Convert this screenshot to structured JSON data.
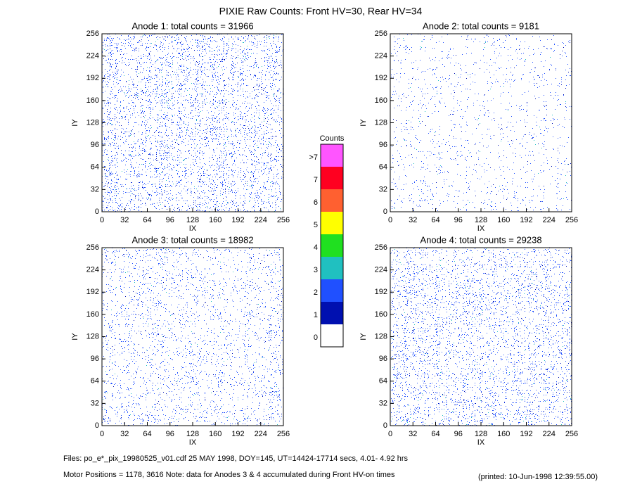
{
  "title": "PIXIE Raw Counts:  Front HV=30, Rear HV=34",
  "chart_data": [
    {
      "type": "heatmap",
      "title": "Anode 1: total counts = 31966",
      "x_label": "IX",
      "y_label": "IY",
      "xlim": [
        0,
        256
      ],
      "ylim": [
        0,
        256
      ],
      "xticks": [
        0,
        32,
        64,
        96,
        128,
        160,
        192,
        224,
        256
      ],
      "yticks": [
        0,
        32,
        64,
        96,
        128,
        160,
        192,
        224,
        256
      ]
    },
    {
      "type": "heatmap",
      "title": "Anode 2: total counts = 9181",
      "x_label": "IX",
      "y_label": "IY",
      "xlim": [
        0,
        256
      ],
      "ylim": [
        0,
        256
      ],
      "xticks": [
        0,
        32,
        64,
        96,
        128,
        160,
        192,
        224,
        256
      ],
      "yticks": [
        0,
        32,
        64,
        96,
        128,
        160,
        192,
        224,
        256
      ]
    },
    {
      "type": "heatmap",
      "title": "Anode 3: total counts = 18982",
      "x_label": "IX",
      "y_label": "IY",
      "xlim": [
        0,
        256
      ],
      "ylim": [
        0,
        256
      ],
      "xticks": [
        0,
        32,
        64,
        96,
        128,
        160,
        192,
        224,
        256
      ],
      "yticks": [
        0,
        32,
        64,
        96,
        128,
        160,
        192,
        224,
        256
      ]
    },
    {
      "type": "heatmap",
      "title": "Anode 4: total counts = 29238",
      "x_label": "IX",
      "y_label": "IY",
      "xlim": [
        0,
        256
      ],
      "ylim": [
        0,
        256
      ],
      "xticks": [
        0,
        32,
        64,
        96,
        128,
        160,
        192,
        224,
        256
      ],
      "yticks": [
        0,
        32,
        64,
        96,
        128,
        160,
        192,
        224,
        256
      ]
    }
  ],
  "colorbar": {
    "title": "Counts",
    "labels": [
      ">7",
      7,
      6,
      5,
      4,
      3,
      2,
      1,
      0
    ],
    "colors": [
      "#ff55ff",
      "#ff0020",
      "#ff6030",
      "#ffff00",
      "#20e020",
      "#20c0c0",
      "#2050ff",
      "#0010b0",
      "#ffffff"
    ]
  },
  "footer": {
    "files": "Files: po_e*_pix_19980525_v01.cdf    25 MAY 1998, DOY=145, UT=14424-17714 secs,  4.01- 4.92 hrs",
    "motor": "Motor Positions = 1178, 3616   Note: data for Anodes 3 & 4 accumulated during Front HV-on times",
    "printed": "(printed: 10-Jun-1998 12:39:55.00)"
  }
}
